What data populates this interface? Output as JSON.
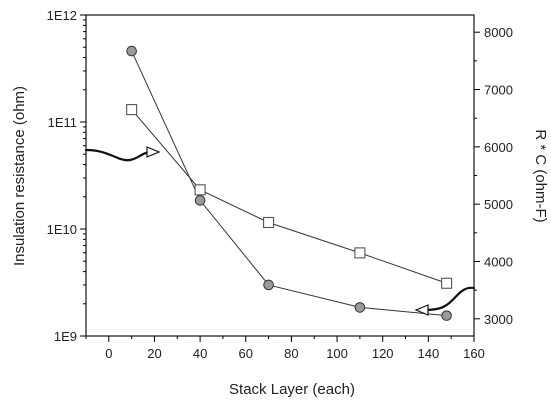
{
  "chart_data": {
    "type": "scatter",
    "title": "",
    "xlabel": "Stack Layer (each)",
    "ylabel_left": "Insulation resistance (ohm)",
    "ylabel_right": "R * C (ohm-F)",
    "xlim": [
      -10,
      160
    ],
    "x_ticks": [
      0,
      20,
      40,
      60,
      80,
      100,
      120,
      140,
      160
    ],
    "y_left_scale": "log",
    "y_left_lim": [
      1000000000.0,
      1000000000000.0
    ],
    "y_left_ticks": [
      {
        "value": 1000000000.0,
        "label": "1E9"
      },
      {
        "value": 10000000000.0,
        "label": "1E10"
      },
      {
        "value": 100000000000.0,
        "label": "1E11"
      },
      {
        "value": 1000000000000.0,
        "label": "1E12"
      }
    ],
    "y_right_lim": [
      2700,
      8300
    ],
    "y_right_ticks": [
      3000,
      4000,
      5000,
      6000,
      7000,
      8000
    ],
    "grid": false,
    "series": [
      {
        "axis": "left",
        "marker": "circle",
        "x": [
          10,
          40,
          70,
          110,
          148
        ],
        "y": [
          460000000000.0,
          18500000000.0,
          3000000000.0,
          1850000000.0,
          1550000000.0
        ]
      },
      {
        "axis": "right",
        "marker": "square",
        "x": [
          10,
          40,
          70,
          110,
          148
        ],
        "y": [
          6650,
          5250,
          4680,
          4150,
          3620
        ]
      }
    ],
    "annotations": [
      {
        "type": "arrow",
        "points_to": "left-axis",
        "near_series_marker": "circle"
      },
      {
        "type": "arrow",
        "points_to": "right-axis",
        "near_series_marker": "square"
      }
    ]
  }
}
